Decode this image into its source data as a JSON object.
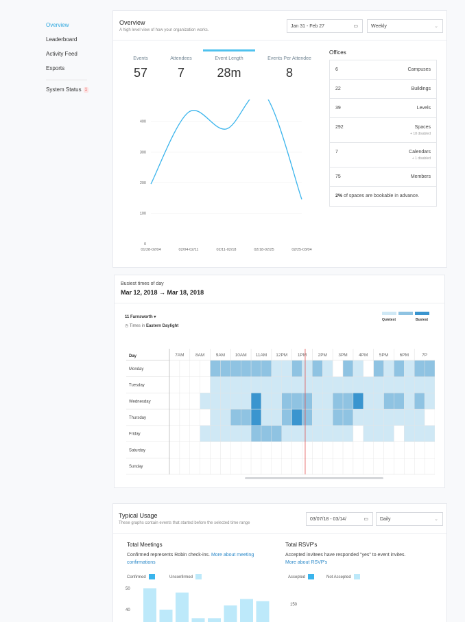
{
  "sidebar": {
    "items": [
      {
        "label": "Overview"
      },
      {
        "label": "Leaderboard"
      },
      {
        "label": "Activity Feed"
      },
      {
        "label": "Exports"
      }
    ],
    "status": {
      "label": "System Status",
      "badge": "1"
    }
  },
  "overview": {
    "title": "Overview",
    "subtitle": "A high level view of how your organization works.",
    "date_range": "Jan 31 - Feb 27",
    "interval": "Weekly",
    "stats": [
      {
        "label": "Events",
        "value": "57"
      },
      {
        "label": "Attendees",
        "value": "7"
      },
      {
        "label": "Event Length",
        "value": "28m"
      },
      {
        "label": "Events Per Attendee",
        "value": "8"
      }
    ],
    "active_stat": "Event Length"
  },
  "chart_data": {
    "type": "line",
    "x": [
      "01/28-02/04",
      "02/04-02/11",
      "02/11-02/18",
      "02/18-02/25",
      "02/25-03/04"
    ],
    "y_ticks": [
      "0",
      "100",
      "200",
      "300",
      "400"
    ],
    "ylim": [
      0,
      460
    ],
    "series": [
      {
        "values": [
          195,
          430,
          375,
          490,
          145
        ]
      }
    ],
    "color": "#3ab4ec"
  },
  "offices": {
    "title": "Offices",
    "rows": [
      {
        "num": "6",
        "label": "Campuses",
        "sub": ""
      },
      {
        "num": "22",
        "label": "Buildings",
        "sub": ""
      },
      {
        "num": "39",
        "label": "Levels",
        "sub": ""
      },
      {
        "num": "292",
        "label": "Spaces",
        "sub": "+ 18 disabled"
      },
      {
        "num": "7",
        "label": "Calendars",
        "sub": "+ 1 disabled"
      },
      {
        "num": "75",
        "label": "Members",
        "sub": ""
      }
    ],
    "note_bold": "2%",
    "note_text": " of spaces are bookable in advance."
  },
  "busiest": {
    "title": "Busiest times of day",
    "range": "Mar 12, 2018 → Mar 18, 2018",
    "location": "11 Farnsworth ▾",
    "tz_prefix": "Times in ",
    "tz_bold": "Eastern Daylight",
    "legend": {
      "quietest": "Quietest",
      "busiest": "Busiest"
    },
    "day_header": "Day",
    "hours": [
      "7AM",
      "8AM",
      "9AM",
      "10AM",
      "11AM",
      "12PM",
      "1PM",
      "2PM",
      "3PM",
      "4PM",
      "5PM",
      "6PM",
      "7P"
    ],
    "days": [
      "Monday",
      "Tuesday",
      "Wednesday",
      "Thursday",
      "Friday",
      "Saturday",
      "Sunday"
    ],
    "levels": [
      [
        0,
        0,
        0,
        0,
        2,
        2,
        2,
        2,
        2,
        2,
        1,
        1,
        2,
        1,
        2,
        1,
        0,
        2,
        1,
        0,
        2,
        1,
        2,
        1,
        2,
        2
      ],
      [
        0,
        0,
        0,
        0,
        1,
        1,
        1,
        1,
        1,
        1,
        1,
        1,
        1,
        1,
        1,
        1,
        1,
        1,
        1,
        1,
        1,
        1,
        1,
        1,
        1,
        1
      ],
      [
        0,
        0,
        0,
        1,
        1,
        1,
        1,
        1,
        3,
        1,
        1,
        2,
        2,
        2,
        1,
        1,
        2,
        2,
        3,
        1,
        1,
        2,
        2,
        1,
        2,
        1
      ],
      [
        0,
        0,
        0,
        0,
        1,
        1,
        2,
        2,
        3,
        1,
        1,
        2,
        3,
        2,
        1,
        1,
        2,
        2,
        1,
        1,
        1,
        1,
        1,
        1,
        1,
        0
      ],
      [
        0,
        0,
        0,
        1,
        1,
        1,
        1,
        1,
        2,
        2,
        2,
        1,
        1,
        1,
        1,
        1,
        1,
        1,
        0,
        1,
        1,
        1,
        0,
        1,
        1,
        1
      ],
      [
        0,
        0,
        0,
        0,
        0,
        0,
        0,
        0,
        0,
        0,
        0,
        0,
        0,
        0,
        0,
        0,
        0,
        0,
        0,
        0,
        0,
        0,
        0,
        0,
        0,
        0
      ],
      [
        0,
        0,
        0,
        0,
        0,
        0,
        0,
        0,
        0,
        0,
        0,
        0,
        0,
        0,
        0,
        0,
        0,
        0,
        0,
        0,
        0,
        0,
        0,
        0,
        0,
        0
      ]
    ],
    "colors": [
      "#ffffff",
      "#cfe8f5",
      "#8fc3e2",
      "#3a95cf"
    ]
  },
  "typical": {
    "title": "Typical Usage",
    "subtitle": "These graphs contain events that started before the selected time range",
    "date_range": "03/07/18 - 03/14/",
    "interval": "Daily",
    "meetings": {
      "title": "Total Meetings",
      "text": "Confirmed represents Robin check-ins. ",
      "link": "More about meeting confirmations",
      "legend_confirmed": "Confirmed",
      "legend_unconfirmed": "Unconfirmed",
      "y_ticks": [
        "40",
        "50"
      ],
      "values": [
        50,
        40,
        48,
        36,
        36,
        42,
        45,
        44
      ]
    },
    "rsvp": {
      "title": "Total RSVP's",
      "text": "Accepted invitees have responded \"yes\" to event invites. ",
      "link": "More about RSVP's",
      "legend_accepted": "Accepted",
      "legend_not": "Not Accepted",
      "y_tick": "150"
    },
    "colors": {
      "confirmed": "#3ab4ec",
      "unconfirmed": "#bde9fa"
    }
  }
}
